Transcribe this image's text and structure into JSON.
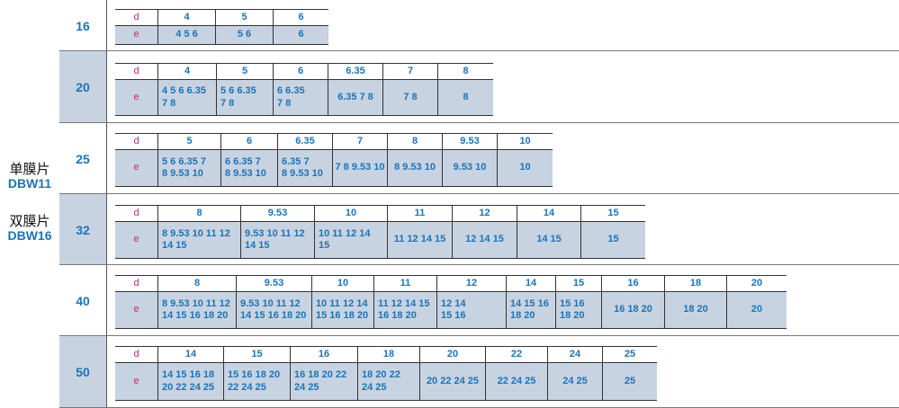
{
  "models": [
    {
      "cn": "单膜片",
      "en": "DBW11"
    },
    {
      "cn": "双膜片",
      "en": "DBW16"
    }
  ],
  "row_label_d": "d",
  "row_label_e": "e",
  "sizes": [
    {
      "size": "16",
      "cols": [
        {
          "d": "4",
          "e": "4 5 6"
        },
        {
          "d": "5",
          "e": "5 6"
        },
        {
          "d": "6",
          "e": "6"
        }
      ]
    },
    {
      "size": "20",
      "cols": [
        {
          "d": "4",
          "e": "4 5 6 6.35\n7 8"
        },
        {
          "d": "5",
          "e": "5 6 6.35\n7 8"
        },
        {
          "d": "6",
          "e": "6 6.35\n7 8"
        },
        {
          "d": "6.35",
          "e": "6.35 7 8"
        },
        {
          "d": "7",
          "e": "7 8"
        },
        {
          "d": "8",
          "e": "8"
        }
      ]
    },
    {
      "size": "25",
      "cols": [
        {
          "d": "5",
          "e": "5 6 6.35 7\n8 9.53 10"
        },
        {
          "d": "6",
          "e": "6 6.35 7\n8 9.53 10"
        },
        {
          "d": "6.35",
          "e": "6.35 7\n8 9.53 10"
        },
        {
          "d": "7",
          "e": "7 8 9.53 10"
        },
        {
          "d": "8",
          "e": "8 9.53 10"
        },
        {
          "d": "9.53",
          "e": "9.53 10"
        },
        {
          "d": "10",
          "e": "10"
        }
      ]
    },
    {
      "size": "32",
      "cols": [
        {
          "d": "8",
          "e": "8 9.53 10 11 12\n14 15"
        },
        {
          "d": "9.53",
          "e": "9.53 10 11 12\n14 15"
        },
        {
          "d": "10",
          "e": "10 11 12 14\n15"
        },
        {
          "d": "11",
          "e": "11 12 14 15"
        },
        {
          "d": "12",
          "e": "12 14 15"
        },
        {
          "d": "14",
          "e": "14 15"
        },
        {
          "d": "15",
          "e": "15"
        }
      ]
    },
    {
      "size": "40",
      "cols": [
        {
          "d": "8",
          "e": "8 9.53 10 11 12\n14 15 16 18 20"
        },
        {
          "d": "9.53",
          "e": "9.53 10 11 12\n14 15 16 18 20"
        },
        {
          "d": "10",
          "e": "10 11 12 14\n15 16 18 20"
        },
        {
          "d": "11",
          "e": "11 12 14 15\n16 18 20"
        },
        {
          "d": "12",
          "e": "12 14\n15 16"
        },
        {
          "d": "14",
          "e": "14 15 16\n18 20"
        },
        {
          "d": "15",
          "e": "15 16\n18 20"
        },
        {
          "d": "16",
          "e": "16 18 20"
        },
        {
          "d": "18",
          "e": "18 20"
        },
        {
          "d": "20",
          "e": "20"
        }
      ]
    },
    {
      "size": "50",
      "cols": [
        {
          "d": "14",
          "e": "14 15 16 18\n20 22 24 25"
        },
        {
          "d": "15",
          "e": "15 16 18 20\n22 24 25"
        },
        {
          "d": "16",
          "e": "16 18 20 22\n24 25"
        },
        {
          "d": "18",
          "e": "18 20 22\n24 25"
        },
        {
          "d": "20",
          "e": "20 22 24 25"
        },
        {
          "d": "22",
          "e": "22 24 25"
        },
        {
          "d": "24",
          "e": "24 25"
        },
        {
          "d": "25",
          "e": "25"
        }
      ]
    }
  ]
}
